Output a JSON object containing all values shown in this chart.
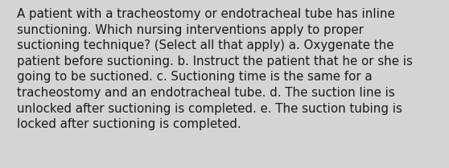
{
  "background_color": "#d4d4d4",
  "text_color": "#1a1a1a",
  "lines": [
    "A patient with a tracheostomy or endotracheal tube has inline",
    "sunctioning. Which nursing interventions apply to proper",
    "suctioning technique? (Select all that apply) a. Oxygenate the",
    "patient before suctioning. b. Instruct the patient that he or she is",
    "going to be suctioned. c. Suctioning time is the same for a",
    "tracheostomy and an endotracheal tube. d. The suction line is",
    "unlocked after suctioning is completed. e. The suction tubing is",
    "locked after suctioning is completed."
  ],
  "font_size": 10.8,
  "font_family": "DejaVu Sans",
  "fig_width": 5.58,
  "fig_height": 2.09,
  "dpi": 100
}
